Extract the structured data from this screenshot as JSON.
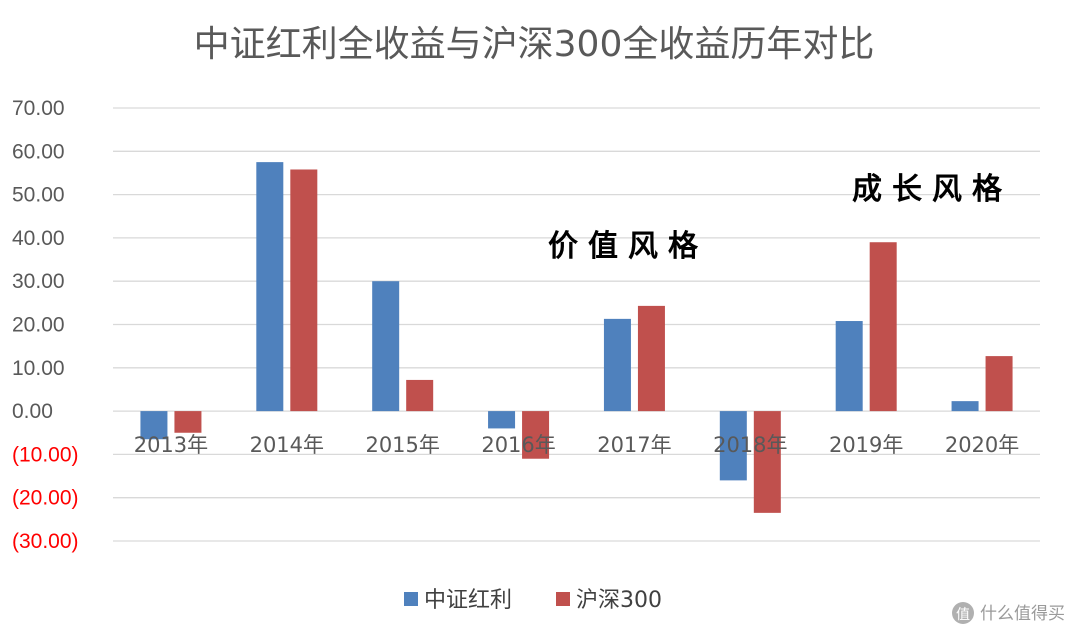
{
  "chart_data": {
    "type": "bar",
    "title": "中证红利全收益与沪深300全收益历年对比",
    "categories": [
      "2013年",
      "2014年",
      "2015年",
      "2016年",
      "2017年",
      "2018年",
      "2019年",
      "2020年"
    ],
    "series": [
      {
        "name": "中证红利",
        "color": "#4f81bd",
        "values": [
          -6.5,
          57.5,
          30.0,
          -4.0,
          21.3,
          -16.0,
          20.8,
          2.3
        ]
      },
      {
        "name": "沪深300",
        "color": "#c0504d",
        "values": [
          -5.0,
          55.8,
          7.2,
          -11.0,
          24.3,
          -23.5,
          39.0,
          12.7
        ]
      }
    ],
    "ylim": [
      -30,
      70
    ],
    "yticks": [
      "70.00",
      "60.00",
      "50.00",
      "40.00",
      "30.00",
      "20.00",
      "10.00",
      "0.00",
      "(10.00)",
      "(20.00)",
      "(30.00)"
    ],
    "ytick_values": [
      70,
      60,
      50,
      40,
      30,
      20,
      10,
      0,
      -10,
      -20,
      -30
    ],
    "ytick_negative_color": "#ff0000",
    "ytick_color": "#595959",
    "grid": true,
    "legend_position": "bottom",
    "annotations": [
      "价值风格",
      "成长风格"
    ]
  },
  "watermark": {
    "icon": "zhi-icon",
    "text": "什么值得买"
  }
}
